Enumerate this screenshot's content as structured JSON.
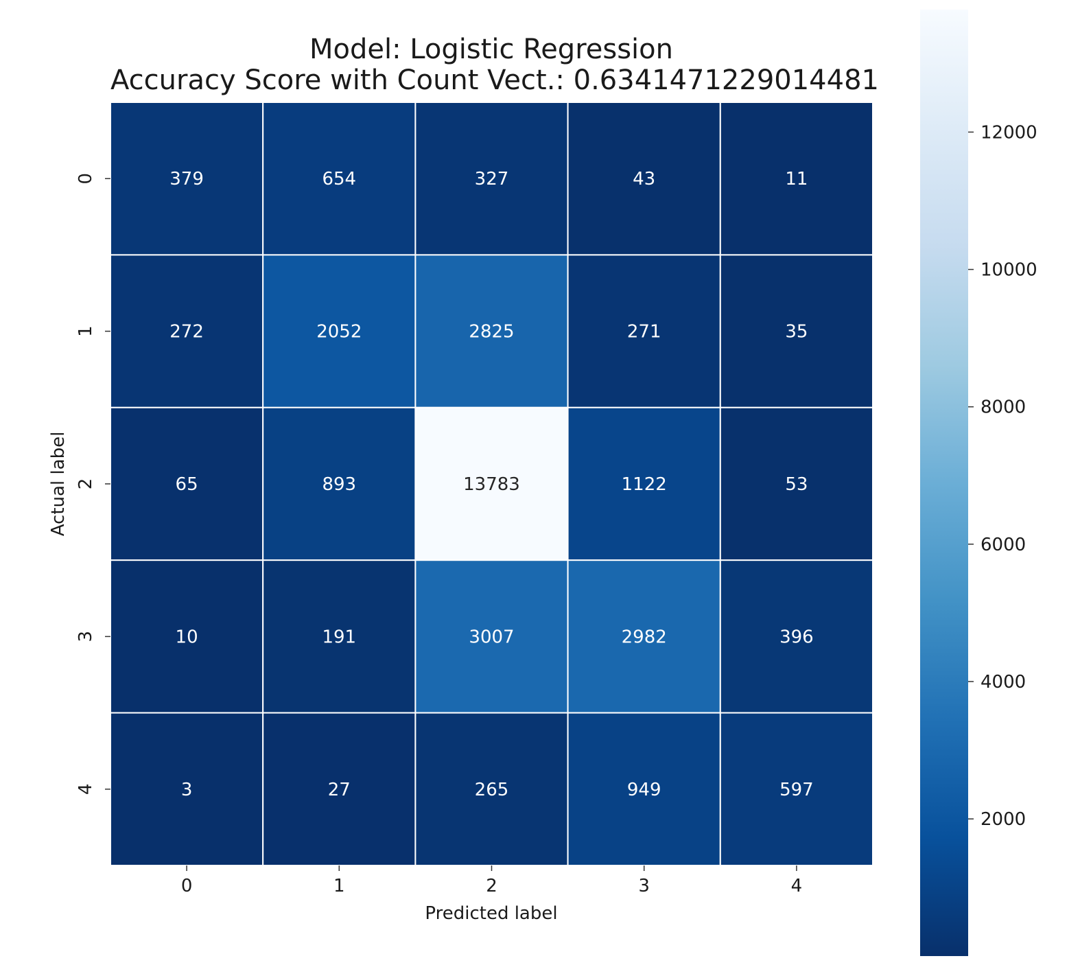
{
  "chart_data": {
    "type": "heatmap",
    "title": "Model: Logistic Regression\nAccuracy Score with Count Vect.: 0.6341471229014481",
    "title_lines": [
      "Model: Logistic Regression",
      "Accuracy Score with Count Vect.: 0.6341471229014481"
    ],
    "xlabel": "Predicted label",
    "ylabel": "Actual label",
    "x_categories": [
      "0",
      "1",
      "2",
      "3",
      "4"
    ],
    "y_categories": [
      "0",
      "1",
      "2",
      "3",
      "4"
    ],
    "values": [
      [
        379,
        654,
        327,
        43,
        11
      ],
      [
        272,
        2052,
        2825,
        271,
        35
      ],
      [
        65,
        893,
        13783,
        1122,
        53
      ],
      [
        10,
        191,
        3007,
        2982,
        396
      ],
      [
        3,
        27,
        265,
        949,
        597
      ]
    ],
    "colormap": "Blues_r",
    "colorbar": {
      "range": [
        3,
        13783
      ],
      "ticks": [
        2000,
        4000,
        6000,
        8000,
        10000,
        12000
      ],
      "tick_labels": [
        "2000",
        "4000",
        "6000",
        "8000",
        "10000",
        "12000"
      ],
      "colors": [
        "#08306b",
        "#08519c",
        "#2171b5",
        "#4292c6",
        "#6baed6",
        "#9ecae1",
        "#c6dbef",
        "#deebf7",
        "#f7fbff"
      ]
    },
    "cell_border_color": "#ffffff",
    "annotation_color": "#ffffff",
    "annotation_color_light_cell": "#262626",
    "grid": false,
    "legend": "colorbar-right"
  }
}
